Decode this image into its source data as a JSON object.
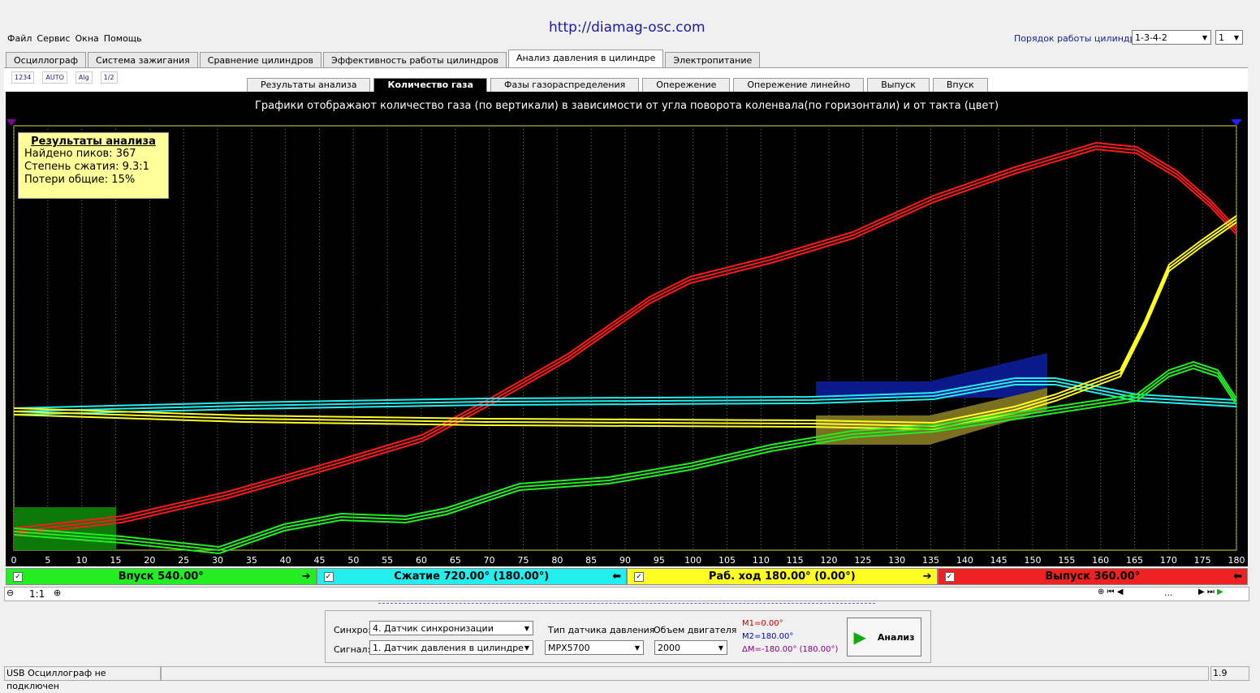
{
  "url": "http://diamag-osc.com",
  "menu": [
    "Файл",
    "Сервис",
    "Окна",
    "Помощь"
  ],
  "cylinder_order": {
    "label": "Порядок работы цилиндров",
    "value": "1-3-4-2",
    "count": "1"
  },
  "tabs": [
    "Осциллограф",
    "Система зажигания",
    "Сравнение цилиндров",
    "Эффективность работы цилиндров",
    "Анализ давления в цилиндре",
    "Электропитание"
  ],
  "toolbar": [
    "1234",
    "AUTO",
    "Alg",
    "1/2"
  ],
  "subtabs": [
    "Результаты анализа",
    "Количество газа",
    "Фазы газораспределения",
    "Опережение",
    "Опережение линейно",
    "Выпуск",
    "Впуск"
  ],
  "chart": {
    "caption": "Графики отображают количество газа (по вертикали) в зависимости от угла поворота коленвала(по горизонтали) и от такта (цвет)",
    "results": {
      "title": "Результаты анализа",
      "lines": [
        "Найдено пиков: 367",
        "Степень сжатия: 9.3:1",
        "Потери общие: 15%"
      ]
    },
    "xlim": [
      0,
      180
    ],
    "xticks": [
      0,
      5,
      10,
      15,
      20,
      25,
      30,
      35,
      40,
      45,
      50,
      55,
      60,
      65,
      70,
      75,
      80,
      85,
      90,
      95,
      100,
      105,
      110,
      115,
      120,
      125,
      130,
      135,
      140,
      145,
      150,
      155,
      160,
      165,
      170,
      175,
      180
    ]
  },
  "strokes": [
    {
      "label": "Впуск 540.00°",
      "color": "#22ee22",
      "arrow": "➔"
    },
    {
      "label": "Сжатие 720.00° (180.00°)",
      "color": "#22eeee",
      "arrow": "⬅"
    },
    {
      "label": "Раб. ход 180.00° (0.00°)",
      "color": "#ffff22",
      "arrow": "➔"
    },
    {
      "label": "Выпуск 360.00°",
      "color": "#ee2222",
      "arrow": "⬅"
    }
  ],
  "zoom": "1:1",
  "scroll_label": "...",
  "controls": {
    "sync_label": "Синхро:",
    "sync": "4.  Датчик синхронизации",
    "signal_label": "Сигнал:",
    "signal": "1.  Датчик давления в цилиндре",
    "sensor_label": "Тип датчика давления",
    "sensor": "MPX5700",
    "volume_label": "Объем двигателя",
    "volume": "2000",
    "m1": "M1=0.00°",
    "m2": "M2=180.00°",
    "dm": "ΔM=-180.00° (180.00°)",
    "button": "Анализ"
  },
  "status": {
    "left": "USB Осциллограф не подключен",
    "right": "1.9"
  }
}
